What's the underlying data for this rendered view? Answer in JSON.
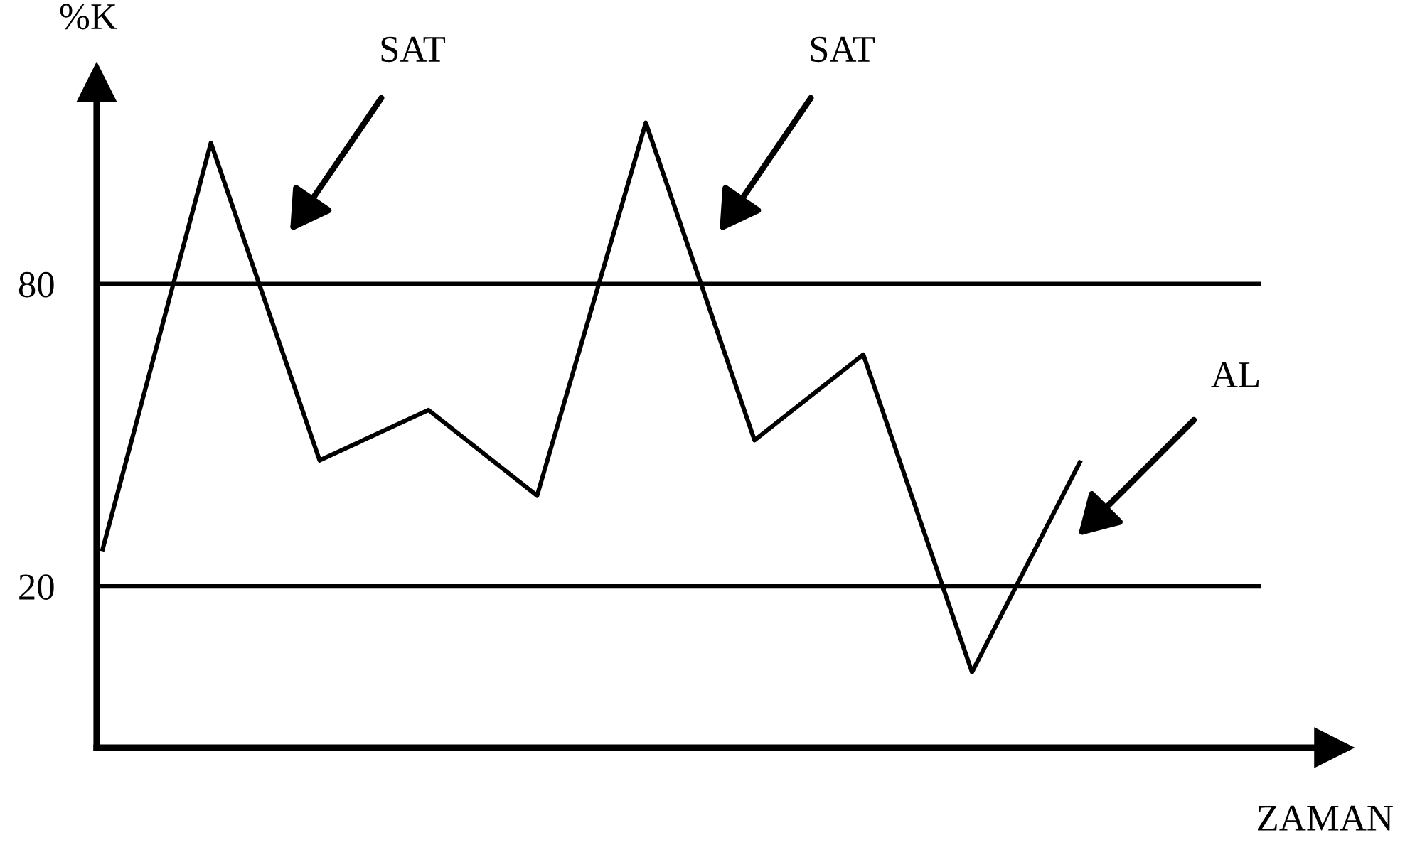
{
  "chart_data": {
    "type": "line",
    "xlabel": "ZAMAN",
    "ylabel": "%K",
    "categories": [
      null,
      null,
      null,
      null,
      null,
      null,
      null,
      null,
      null,
      null
    ],
    "series": [
      {
        "color": "#000000",
        "values": [
          27,
          108,
          45,
          55,
          38,
          112,
          49,
          66,
          3,
          45
        ]
      }
    ],
    "ylim": [
      -12,
      120
    ],
    "yticks": [
      20,
      80
    ],
    "tick_labels": "y",
    "ref_lines": [
      {
        "axis": "y",
        "value": 80,
        "color": "#000000",
        "line_style": "solid"
      },
      {
        "axis": "y",
        "value": 20,
        "color": "#000000",
        "line_style": "solid"
      }
    ],
    "annotations": [
      "SAT",
      "SAT",
      "AL"
    ],
    "grid": false,
    "legend": false,
    "marker": "none",
    "line_style": "solid"
  }
}
